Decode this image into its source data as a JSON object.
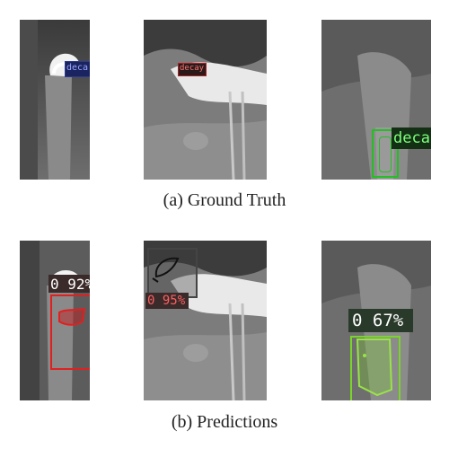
{
  "figure": {
    "row_a": {
      "caption": "(a) Ground Truth",
      "panels": [
        {
          "label": "deca",
          "color": "#2e3a8c"
        },
        {
          "label": "decay",
          "color": "#b02020"
        },
        {
          "label": "deca",
          "color": "#22c022"
        }
      ]
    },
    "row_b": {
      "caption": "(b) Predictions",
      "panels": [
        {
          "label": "0 92%",
          "color": "#e02020"
        },
        {
          "label": "0 95%",
          "color": "#e02020"
        },
        {
          "label": "0 67%",
          "color": "#7ad42a"
        }
      ]
    }
  }
}
